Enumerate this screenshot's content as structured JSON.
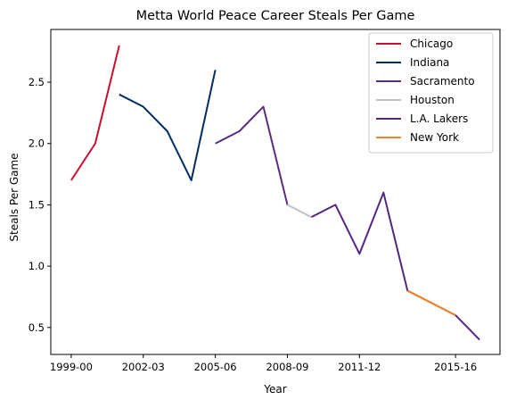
{
  "chart_data": {
    "type": "line",
    "title": "Metta World Peace Career Steals Per Game",
    "xlabel": "Year",
    "ylabel": "Steals Per Game",
    "x_tick_labels": [
      "1999-00",
      "2002-03",
      "2005-06",
      "2008-09",
      "2011-12",
      "2015-16"
    ],
    "y_tick_labels": [
      "0.5",
      "1.0",
      "1.5",
      "2.0",
      "2.5"
    ],
    "y_ticks": [
      0.5,
      1.0,
      1.5,
      2.0,
      2.5
    ],
    "ylim": [
      0.28,
      2.93
    ],
    "legend_position": "top-right",
    "grid": false,
    "seasons": [
      "1999-00",
      "2000-01",
      "2001-02",
      "2002-03",
      "2003-04",
      "2004-05",
      "2005-06",
      "2006-07",
      "2007-08",
      "2008-09",
      "2009-10",
      "2010-11",
      "2011-12",
      "2012-13",
      "2013-14",
      "2014-15",
      "2015-16",
      "2016-17"
    ],
    "series": [
      {
        "name": "Chicago",
        "color": "#C8102E",
        "points": [
          [
            "1999-00",
            1.7
          ],
          [
            "2000-01",
            2.0
          ],
          [
            "2001-02",
            2.8
          ]
        ]
      },
      {
        "name": "Indiana",
        "color": "#002D62",
        "points": [
          [
            "2001-02",
            2.4
          ],
          [
            "2002-03",
            2.3
          ],
          [
            "2003-04",
            2.1
          ],
          [
            "2004-05",
            1.7
          ],
          [
            "2005-06",
            2.6
          ]
        ]
      },
      {
        "name": "Sacramento",
        "color": "#5A2D81",
        "points": [
          [
            "2005-06",
            2.0
          ],
          [
            "2006-07",
            2.1
          ],
          [
            "2007-08",
            2.3
          ],
          [
            "2008-09",
            1.5
          ]
        ]
      },
      {
        "name": "Houston",
        "color": "#C0C0C0",
        "points": [
          [
            "2008-09",
            1.5
          ],
          [
            "2009-10",
            1.4
          ]
        ]
      },
      {
        "name": "L.A. Lakers",
        "color": "#552583",
        "points": [
          [
            "2009-10",
            1.4
          ],
          [
            "2010-11",
            1.5
          ],
          [
            "2011-12",
            1.1
          ],
          [
            "2012-13",
            1.6
          ],
          [
            "2013-14",
            0.8
          ],
          [
            "2015-16",
            0.6
          ],
          [
            "2016-17",
            0.4
          ]
        ]
      },
      {
        "name": "New York",
        "color": "#F58426",
        "points": [
          [
            "2013-14",
            0.8
          ],
          [
            "2015-16",
            0.6
          ]
        ]
      }
    ]
  }
}
